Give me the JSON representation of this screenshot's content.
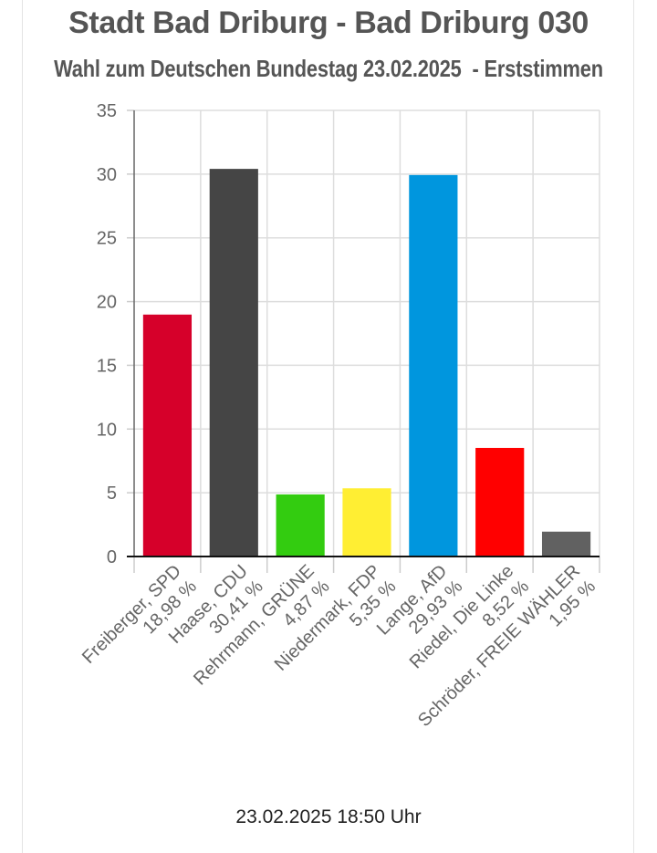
{
  "header": {
    "title": "Stadt Bad Driburg - Bad Driburg 030",
    "subtitle": "Wahl zum Deutschen Bundestag 23.02.2025  - Erststimmen"
  },
  "footer": {
    "timestamp": "23.02.2025 18:50 Uhr"
  },
  "chart_data": {
    "type": "bar",
    "categories": [
      "Freiberger, SPD",
      "Haase, CDU",
      "Rehrmann, GRÜNE",
      "Niedermark, FDP",
      "Lange, AfD",
      "Riedel, Die Linke",
      "Schröder, FREIE WÄHLER"
    ],
    "value_labels": [
      "18,98 %",
      "30,41 %",
      "4,87 %",
      "5,35 %",
      "29,93 %",
      "8,52 %",
      "1,95 %"
    ],
    "values": [
      18.98,
      30.41,
      4.87,
      5.35,
      29.93,
      8.52,
      1.95
    ],
    "colors": [
      "#d6002a",
      "#454545",
      "#33cc10",
      "#ffee33",
      "#0096de",
      "#ff0000",
      "#616161"
    ],
    "ylim": [
      0,
      35
    ],
    "yticks": [
      0,
      5,
      10,
      15,
      20,
      25,
      30,
      35
    ],
    "grid": true,
    "legend": "none"
  }
}
